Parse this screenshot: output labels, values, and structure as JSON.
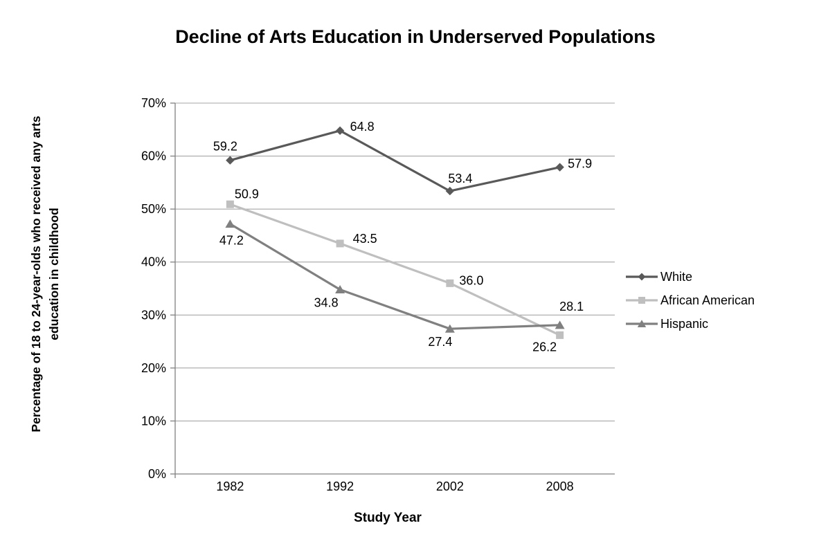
{
  "chart_data": {
    "type": "line",
    "title": "Decline of Arts Education in Underserved Populations",
    "xlabel": "Study Year",
    "ylabel": "Percentage of 18 to 24-year-olds who received any arts education in childhood",
    "ylabel_line1": "Percentage of 18 to 24-year-olds who received any arts",
    "ylabel_line2": "education in childhood",
    "categories": [
      "1982",
      "1992",
      "2002",
      "2008"
    ],
    "y_ticks": [
      "70%",
      "60%",
      "50%",
      "40%",
      "30%",
      "20%",
      "10%",
      "0%"
    ],
    "ylim": [
      0,
      70
    ],
    "grid": true,
    "legend_position": "right",
    "series": [
      {
        "name": "White",
        "values": [
          59.2,
          64.8,
          53.4,
          57.9
        ],
        "labels": [
          "59.2",
          "64.8",
          "53.4",
          "57.9"
        ],
        "color": "#595959",
        "marker": "diamond",
        "label_offsets": [
          [
            -7,
            -20
          ],
          [
            32,
            -6
          ],
          [
            15,
            -18
          ],
          [
            29,
            -5
          ]
        ]
      },
      {
        "name": "African American",
        "values": [
          50.9,
          43.5,
          36.0,
          26.2
        ],
        "labels": [
          "50.9",
          "43.5",
          "36.0",
          "26.2"
        ],
        "color": "#bfbfbf",
        "marker": "square",
        "label_offsets": [
          [
            24,
            -15
          ],
          [
            36,
            -7
          ],
          [
            31,
            -4
          ],
          [
            -22,
            17
          ]
        ]
      },
      {
        "name": "Hispanic",
        "values": [
          47.2,
          34.8,
          27.4,
          28.1
        ],
        "labels": [
          "47.2",
          "34.8",
          "27.4",
          "28.1"
        ],
        "color": "#808080",
        "marker": "triangle",
        "label_offsets": [
          [
            2,
            24
          ],
          [
            -20,
            19
          ],
          [
            -14,
            19
          ],
          [
            17,
            -27
          ]
        ]
      }
    ],
    "colors": {
      "gridline": "#a6a6a6",
      "axis": "#808080",
      "text": "#000000",
      "background": "#ffffff"
    }
  }
}
